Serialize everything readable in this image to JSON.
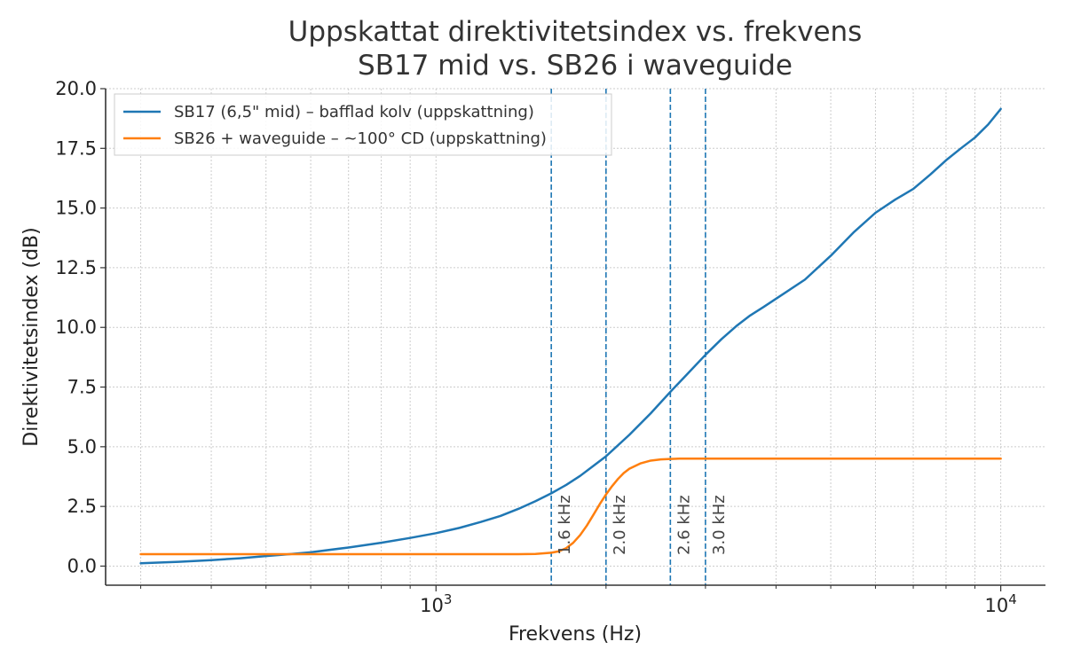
{
  "colors": {
    "series_1": "#1f77b4",
    "series_2": "#ff7f0e",
    "marker_lines": "#1f77b4",
    "grid": "#cccccc",
    "axis": "#333333"
  },
  "chart_data": {
    "type": "line",
    "title": [
      "Uppskattat direktivitetsindex vs. frekvens",
      "SB17 mid vs. SB26 i waveguide"
    ],
    "xlabel": "Frekvens (Hz)",
    "ylabel": "Direktivitetsindex (dB)",
    "xscale": "log",
    "xlim": [
      260,
      12000
    ],
    "ylim": [
      -0.8,
      20.0
    ],
    "yticks": [
      0.0,
      2.5,
      5.0,
      7.5,
      10.0,
      12.5,
      15.0,
      17.5,
      20.0
    ],
    "ytick_labels": [
      "0.0",
      "2.5",
      "5.0",
      "7.5",
      "10.0",
      "12.5",
      "15.0",
      "17.5",
      "20.0"
    ],
    "xticks_major": [
      {
        "value": 1000,
        "base": "10",
        "exp": "3"
      },
      {
        "value": 10000,
        "base": "10",
        "exp": "4"
      }
    ],
    "grid": true,
    "legend_position": "top-left",
    "series": [
      {
        "name": "SB17 (6,5\" mid) – bafflad kolv (uppskattning)",
        "x": [
          300,
          350,
          400,
          450,
          500,
          550,
          600,
          700,
          800,
          900,
          1000,
          1100,
          1200,
          1300,
          1400,
          1500,
          1600,
          1700,
          1800,
          1900,
          2000,
          2200,
          2400,
          2600,
          2800,
          3000,
          3200,
          3400,
          3600,
          3800,
          4000,
          4500,
          5000,
          5500,
          6000,
          6500,
          7000,
          7500,
          8000,
          8500,
          9000,
          9500,
          10000
        ],
        "y": [
          0.12,
          0.18,
          0.25,
          0.33,
          0.42,
          0.5,
          0.58,
          0.78,
          0.98,
          1.18,
          1.38,
          1.6,
          1.85,
          2.1,
          2.4,
          2.72,
          3.05,
          3.4,
          3.78,
          4.2,
          4.6,
          5.5,
          6.4,
          7.3,
          8.1,
          8.85,
          9.5,
          10.05,
          10.5,
          10.85,
          11.2,
          12.0,
          13.0,
          14.0,
          14.8,
          15.35,
          15.8,
          16.4,
          17.0,
          17.5,
          17.95,
          18.5,
          19.15
        ]
      },
      {
        "name": "SB26 + waveguide – ~100° CD (uppskattning)",
        "x": [
          300,
          400,
          500,
          600,
          700,
          800,
          900,
          1000,
          1100,
          1200,
          1300,
          1400,
          1500,
          1600,
          1650,
          1700,
          1750,
          1800,
          1850,
          1900,
          1950,
          2000,
          2050,
          2100,
          2150,
          2200,
          2300,
          2400,
          2500,
          2600,
          2700,
          2800,
          3000,
          4000,
          5000,
          6000,
          8000,
          10000
        ],
        "y": [
          0.5,
          0.5,
          0.5,
          0.5,
          0.5,
          0.5,
          0.5,
          0.5,
          0.5,
          0.5,
          0.5,
          0.5,
          0.51,
          0.56,
          0.62,
          0.75,
          0.98,
          1.3,
          1.7,
          2.15,
          2.6,
          3.0,
          3.35,
          3.65,
          3.9,
          4.08,
          4.3,
          4.42,
          4.47,
          4.49,
          4.5,
          4.5,
          4.5,
          4.5,
          4.5,
          4.5,
          4.5,
          4.5
        ]
      }
    ],
    "vertical_lines": [
      {
        "x": 1600,
        "label": "1.6 kHz"
      },
      {
        "x": 2000,
        "label": "2.0 kHz"
      },
      {
        "x": 2600,
        "label": "2.6 kHz"
      },
      {
        "x": 3000,
        "label": "3.0 kHz"
      }
    ]
  }
}
